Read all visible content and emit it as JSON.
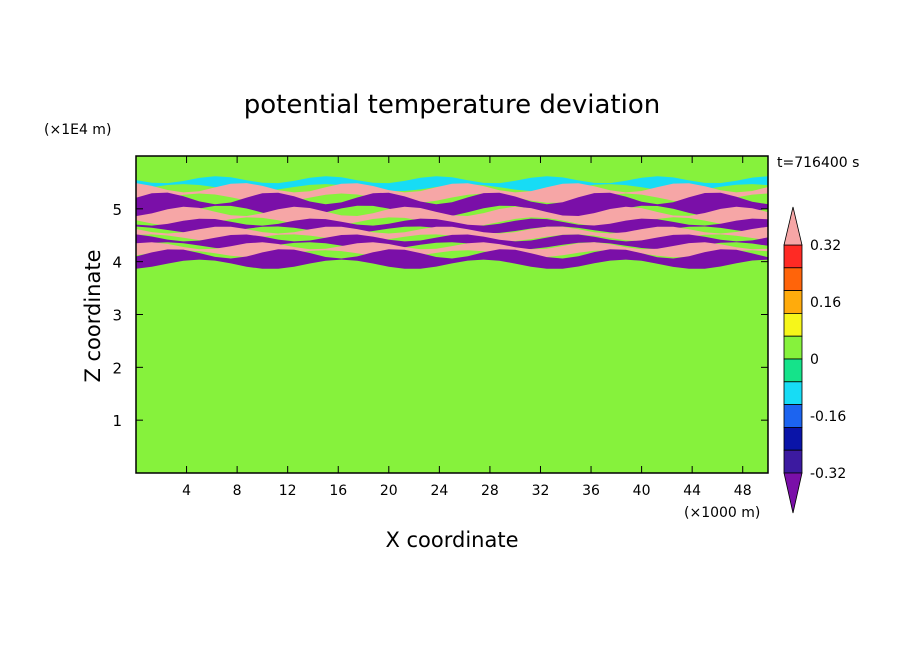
{
  "chart_data": {
    "type": "heatmap",
    "title": "potential temperature deviation",
    "xlabel": "X coordinate",
    "ylabel": "Z coordinate",
    "x_unit": "(×1000 m)",
    "y_unit": "(×1E4 m)",
    "time_label": "t=716400 s",
    "xlim": [
      0,
      50
    ],
    "ylim": [
      0,
      6
    ],
    "x_ticks": [
      4,
      8,
      12,
      16,
      20,
      24,
      28,
      32,
      36,
      40,
      44,
      48
    ],
    "y_ticks": [
      1,
      2,
      3,
      4,
      5
    ],
    "colorbar": {
      "levels": [
        -0.4,
        -0.32,
        -0.24,
        -0.16,
        -0.08,
        0,
        0.08,
        0.16,
        0.24,
        0.32,
        0.4
      ],
      "tick_labels": [
        "0.32",
        "0.16",
        "0",
        "-0.16",
        "-0.32"
      ],
      "tick_values": [
        0.32,
        0.16,
        0,
        -0.16,
        -0.32
      ],
      "colors": [
        "#7a0fa8",
        "#3c1aa0",
        "#0a14a8",
        "#1c64f0",
        "#17dcf5",
        "#15e38a",
        "#86f23c",
        "#f6f61a",
        "#ffab0c",
        "#ff640a",
        "#ff2a24",
        "#f6a6a6"
      ]
    },
    "bands": [
      {
        "zmin": 5.4,
        "zmax": 5.55,
        "value": -0.1
      },
      {
        "zmin": 5.2,
        "zmax": 5.4,
        "value": 0.45
      },
      {
        "zmin": 4.95,
        "zmax": 5.2,
        "value": -0.45
      },
      {
        "zmin": 4.75,
        "zmax": 4.95,
        "value": 0.45
      },
      {
        "zmin": 4.6,
        "zmax": 4.75,
        "value": -0.45
      },
      {
        "zmin": 4.45,
        "zmax": 4.6,
        "value": 0.45
      },
      {
        "zmin": 4.3,
        "zmax": 4.45,
        "value": -0.45
      },
      {
        "zmin": 4.15,
        "zmax": 4.3,
        "value": 0.45
      },
      {
        "zmin": 3.95,
        "zmax": 4.15,
        "value": -0.45
      }
    ],
    "background_value": 0.04
  }
}
